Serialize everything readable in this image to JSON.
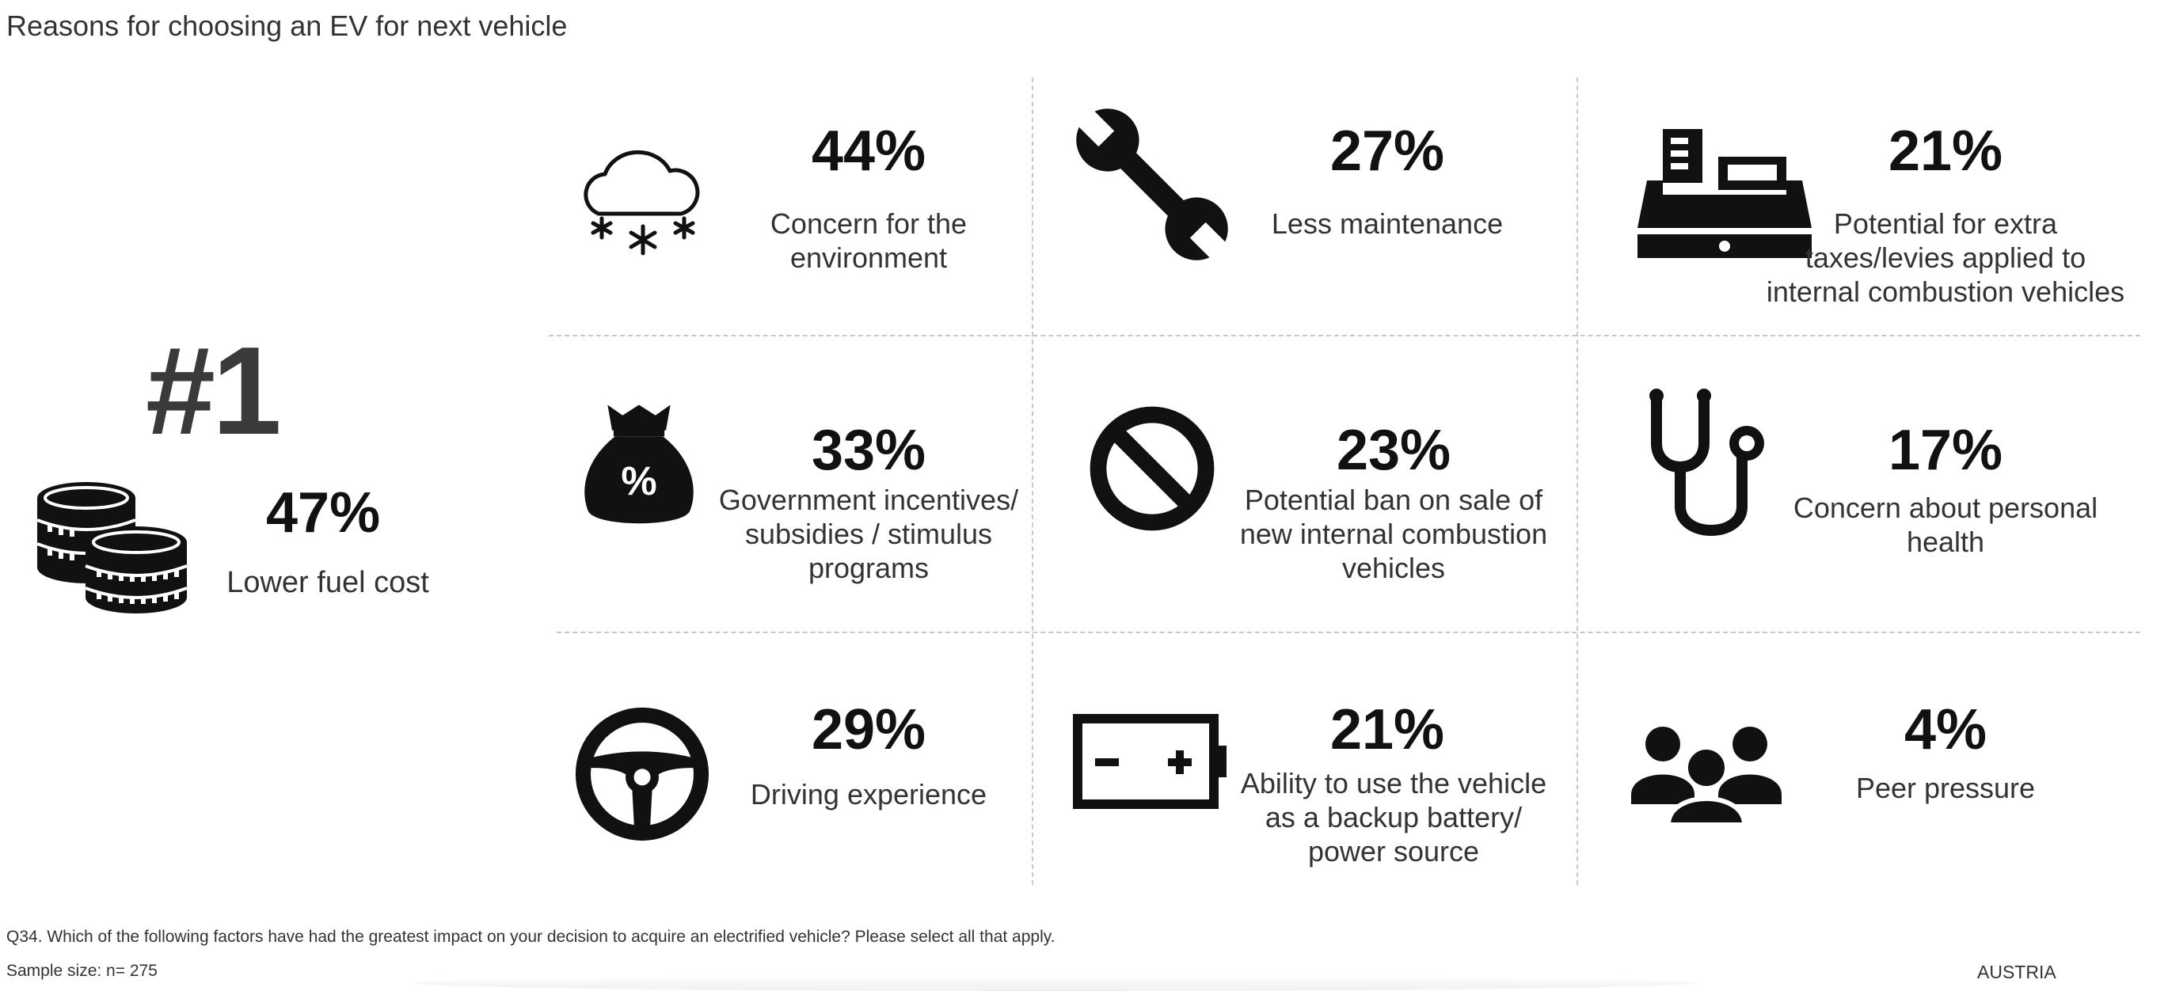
{
  "title": "Reasons for choosing an EV for next vehicle",
  "top": {
    "rank": "#1",
    "value": "47%",
    "label": "Lower fuel cost",
    "icon": "coins-icon"
  },
  "chart_data": {
    "type": "table",
    "title": "Reasons for choosing an EV for next vehicle",
    "categories": [
      "Lower fuel cost",
      "Concern for the environment",
      "Less maintenance",
      "Potential for extra taxes/levies applied to internal combustion vehicles",
      "Government incentives/ subsidies / stimulus programs",
      "Potential ban on sale of new internal combustion vehicles",
      "Concern about personal health",
      "Driving experience",
      "Ability to use the vehicle as a backup battery/ power source",
      "Peer pressure"
    ],
    "values": [
      47,
      44,
      27,
      21,
      33,
      23,
      17,
      29,
      21,
      4
    ],
    "unit": "%"
  },
  "cells": [
    {
      "value": "44%",
      "label": "Concern for the environment",
      "icon": "snow-cloud-icon"
    },
    {
      "value": "27%",
      "label": "Less maintenance",
      "icon": "wrench-icon"
    },
    {
      "value": "21%",
      "label": "Potential for extra taxes/levies applied to internal combustion vehicles",
      "icon": "cash-register-icon"
    },
    {
      "value": "33%",
      "label": "Government incentives/ subsidies / stimulus programs",
      "icon": "money-bag-icon"
    },
    {
      "value": "23%",
      "label": "Potential ban on sale of new internal combustion vehicles",
      "icon": "prohibited-icon"
    },
    {
      "value": "17%",
      "label": "Concern about personal health",
      "icon": "stethoscope-icon"
    },
    {
      "value": "29%",
      "label": "Driving experience",
      "icon": "steering-wheel-icon"
    },
    {
      "value": "21%",
      "label": "Ability to use the vehicle as a backup battery/ power source",
      "icon": "battery-icon"
    },
    {
      "value": "4%",
      "label": "Peer pressure",
      "icon": "group-icon"
    }
  ],
  "footnote": "Q34. Which of the following factors have had the greatest impact on your decision to acquire an electrified vehicle? Please select all that apply.",
  "sample": "Sample size: n= 275",
  "country": "AUSTRIA"
}
